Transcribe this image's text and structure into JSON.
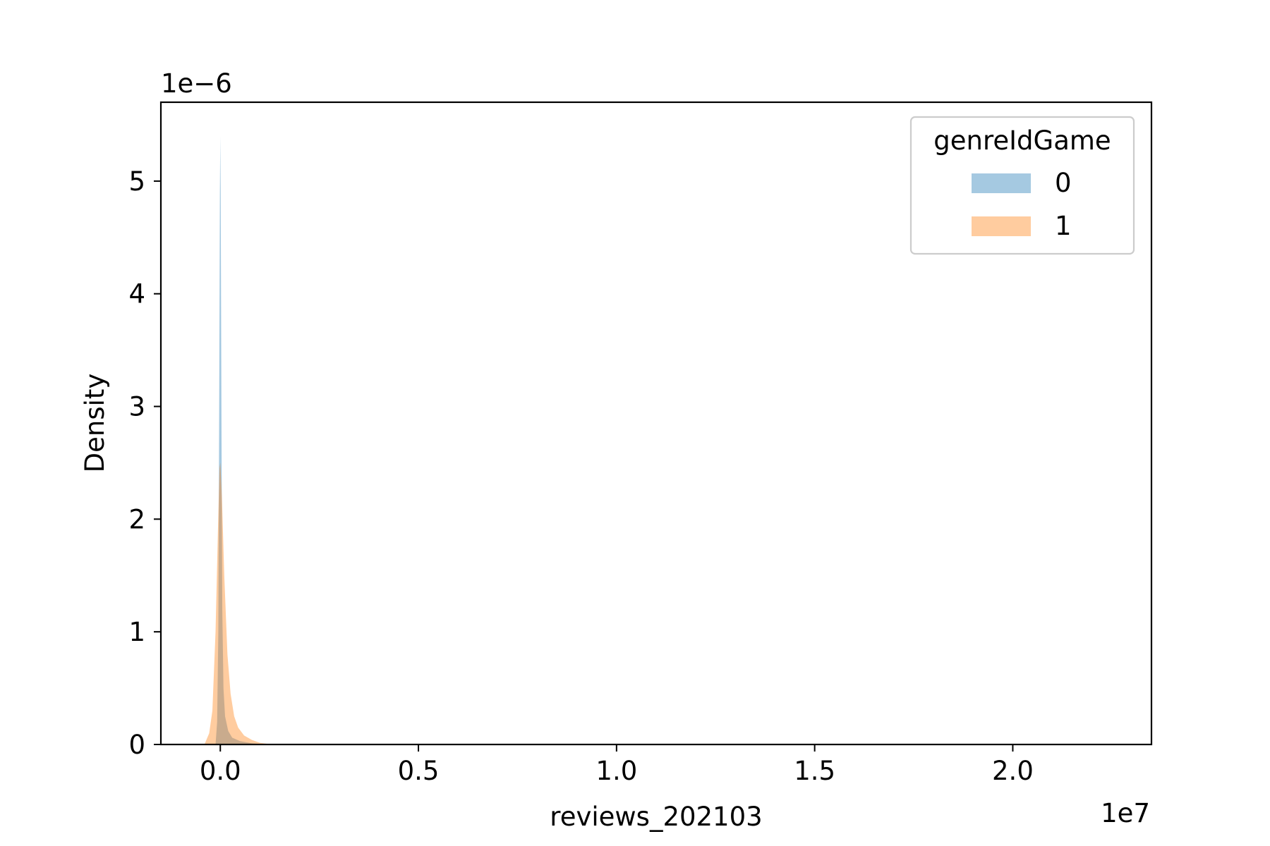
{
  "chart_data": {
    "type": "area",
    "title": "",
    "xlabel": "reviews_202103",
    "ylabel": "Density",
    "x_offset_label": "1e7",
    "y_offset_label": "1e−6",
    "x_scale": 10000000,
    "y_scale": 1e-06,
    "xlim": [
      -0.15,
      2.35
    ],
    "ylim": [
      0,
      5.7
    ],
    "x_ticks": [
      0.0,
      0.5,
      1.0,
      1.5,
      2.0
    ],
    "x_tick_labels": [
      "0.0",
      "0.5",
      "1.0",
      "1.5",
      "2.0"
    ],
    "y_ticks": [
      0,
      1,
      2,
      3,
      4,
      5
    ],
    "y_tick_labels": [
      "0",
      "1",
      "2",
      "3",
      "4",
      "5"
    ],
    "grid": false,
    "legend": {
      "title": "genreIdGame",
      "placement": "top-right"
    },
    "series": [
      {
        "name": "0",
        "color": "#1f77b4",
        "x": [
          -0.012,
          -0.008,
          -0.005,
          -0.003,
          -0.001,
          0.0,
          0.001,
          0.003,
          0.005,
          0.008,
          0.012,
          0.02,
          0.03,
          0.05,
          0.08,
          0.12
        ],
        "y": [
          0.0,
          0.2,
          1.0,
          2.8,
          4.9,
          5.4,
          4.9,
          2.8,
          1.2,
          0.5,
          0.25,
          0.12,
          0.06,
          0.03,
          0.01,
          0.0
        ]
      },
      {
        "name": "1",
        "color": "#ff7f0e",
        "x": [
          -0.04,
          -0.028,
          -0.02,
          -0.012,
          -0.006,
          -0.002,
          0.0,
          0.004,
          0.01,
          0.018,
          0.026,
          0.035,
          0.045,
          0.06,
          0.08,
          0.1,
          0.13
        ],
        "y": [
          0.0,
          0.1,
          0.3,
          1.0,
          1.9,
          2.45,
          2.5,
          2.2,
          1.5,
          0.8,
          0.45,
          0.25,
          0.15,
          0.08,
          0.04,
          0.015,
          0.0
        ]
      }
    ]
  }
}
